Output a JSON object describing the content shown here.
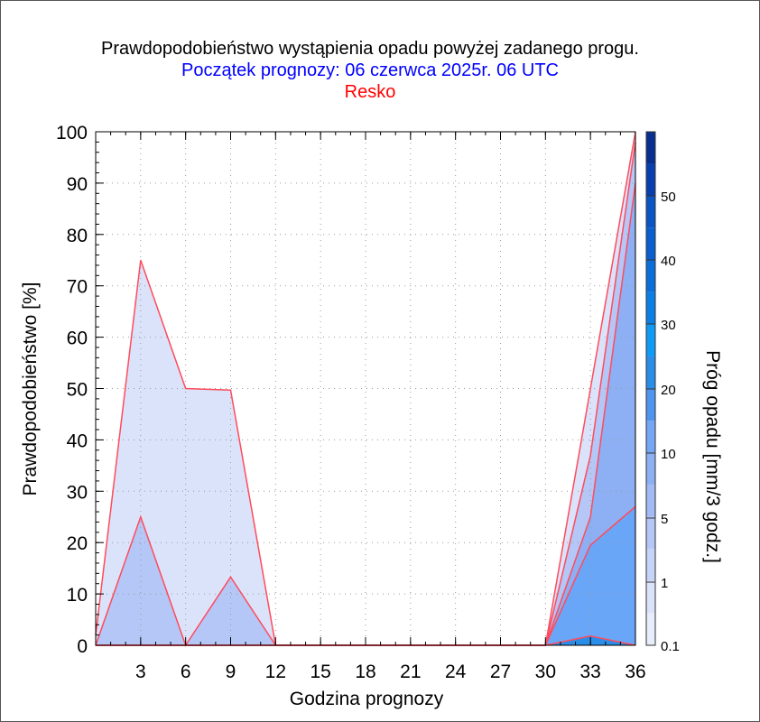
{
  "header": {
    "title": "Prawdopodobieństwo wystąpienia opadu powyżej zadanego progu.",
    "subtitle": "Początek prognozy: 06 czerwca 2025r. 06 UTC",
    "location": "Resko"
  },
  "colors": {
    "title": "#000000",
    "subtitle": "#0000ff",
    "location": "#ff0000",
    "series_line": "#ff4b5c",
    "grid": "#9a9a9a"
  },
  "chart_data": {
    "type": "area",
    "title": "Prawdopodobieństwo wystąpienia opadu powyżej zadanego progu.",
    "xlabel": "Godzina prognozy",
    "ylabel": "Prawdopodobieństwo [%]",
    "xlim": [
      0,
      36
    ],
    "ylim": [
      0,
      100
    ],
    "x_ticks": [
      3,
      6,
      9,
      12,
      15,
      18,
      21,
      24,
      27,
      30,
      33,
      36
    ],
    "y_ticks": [
      0,
      10,
      20,
      30,
      40,
      50,
      60,
      70,
      80,
      90,
      100
    ],
    "grid": true,
    "x": [
      0,
      3,
      6,
      9,
      12,
      15,
      18,
      21,
      24,
      27,
      30,
      33,
      36
    ],
    "series": [
      {
        "threshold": "0.1",
        "color": "#dbe3fb",
        "values": [
          2,
          75,
          50,
          49.7,
          0,
          0,
          0,
          0,
          0,
          0,
          0,
          50,
          100
        ]
      },
      {
        "threshold": "1",
        "color": "#b4c7f6",
        "values": [
          0,
          25,
          0,
          13.3,
          0,
          0,
          0,
          0,
          0,
          0,
          0,
          37,
          98
        ]
      },
      {
        "threshold": "5",
        "color": "#8cb0f3",
        "values": [
          0,
          0,
          0,
          0,
          0,
          0,
          0,
          0,
          0,
          0,
          0,
          25,
          90
        ]
      },
      {
        "threshold": "10",
        "color": "#6aa6f8",
        "values": [
          0,
          0,
          0,
          0,
          0,
          0,
          0,
          0,
          0,
          0,
          0,
          19.5,
          27
        ]
      },
      {
        "threshold": "20",
        "color": "#2a8de8",
        "values": [
          0,
          0,
          0,
          0,
          0,
          0,
          0,
          0,
          0,
          0,
          0,
          1.8,
          0
        ]
      }
    ],
    "colorbar": {
      "label": "Próg opadu [mm/3 godz.]",
      "tick_labels": [
        "0.1",
        "1",
        "5",
        "10",
        "20",
        "30",
        "40",
        "50"
      ],
      "colors": [
        "#e8edfc",
        "#dbe3fb",
        "#c6d4f8",
        "#b4c7f6",
        "#a2baf5",
        "#8cb0f3",
        "#76a6f6",
        "#4f95f0",
        "#2a8de8",
        "#0f9af6",
        "#0b7fe6",
        "#0a6fdb",
        "#0a5fd0",
        "#0a55c5",
        "#083fae",
        "#062f8f"
      ]
    }
  }
}
